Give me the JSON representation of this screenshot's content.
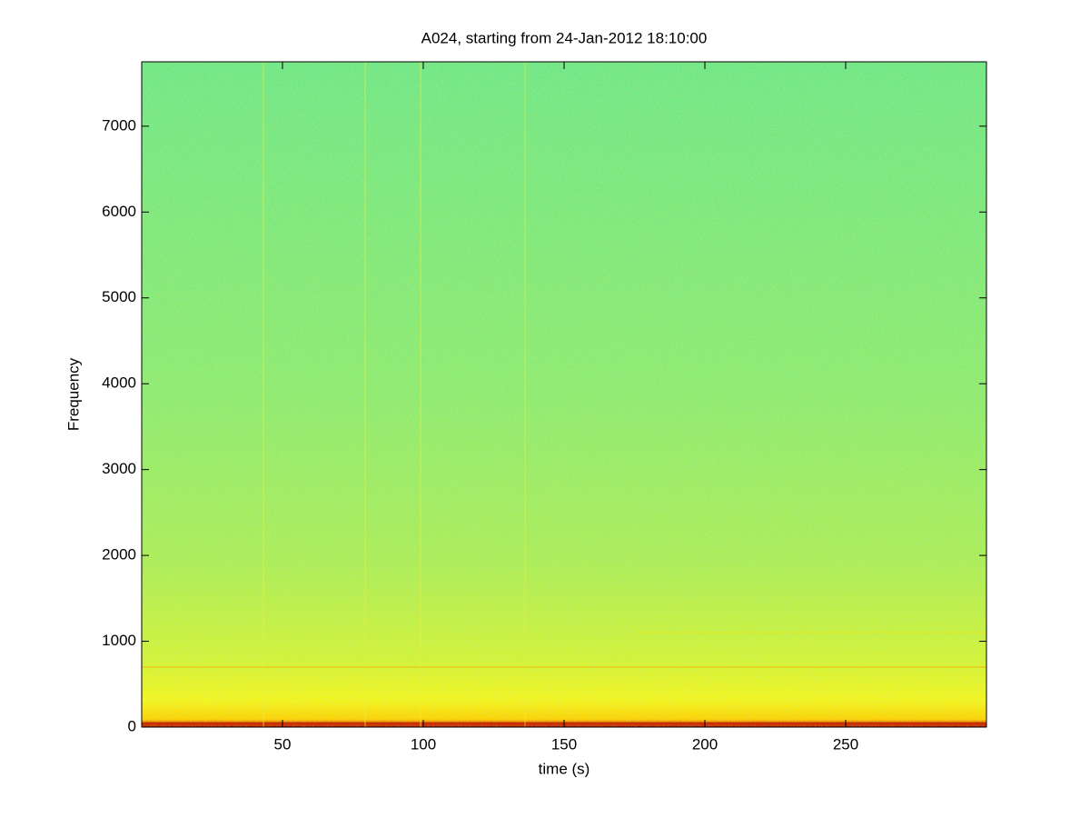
{
  "chart_data": {
    "type": "spectrogram",
    "title": "A024, starting from 24-Jan-2012 18:10:00",
    "x_label": "time (s)",
    "y_label": "Frequency",
    "xlim": [
      0,
      300
    ],
    "xticks": [
      50,
      100,
      150,
      200,
      250
    ],
    "ylim": [
      0,
      7750
    ],
    "yticks": [
      0,
      1000,
      2000,
      3000,
      4000,
      5000,
      6000,
      7000
    ]
  }
}
